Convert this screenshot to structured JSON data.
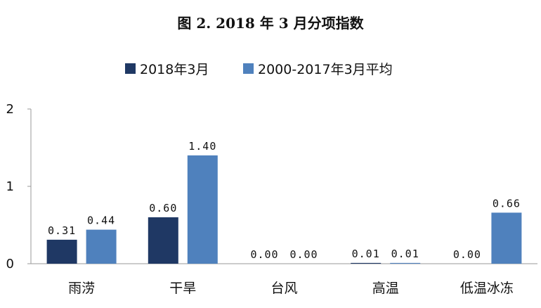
{
  "chart_data": {
    "type": "bar",
    "title": "图 2. 2018 年 3 月分项指数",
    "categories": [
      "雨涝",
      "干旱",
      "台风",
      "高温",
      "低温冰冻"
    ],
    "series": [
      {
        "name": "2018年3月",
        "values": [
          0.31,
          0.6,
          0.0,
          0.01,
          0.0
        ],
        "labels": [
          "0.31",
          "0.60",
          "0.00",
          "0.01",
          "0.00"
        ]
      },
      {
        "name": "2000-2017年3月平均",
        "values": [
          0.44,
          1.4,
          0.0,
          0.01,
          0.66
        ],
        "labels": [
          "0.44",
          "1.40",
          "0.00",
          "0.01",
          "0.66"
        ]
      }
    ],
    "colors": [
      "#1f3864",
      "#4f81bd"
    ],
    "yticks": [
      "0",
      "1",
      "2"
    ],
    "ylim": [
      0,
      2
    ],
    "grid": false,
    "legend_position": "top"
  }
}
